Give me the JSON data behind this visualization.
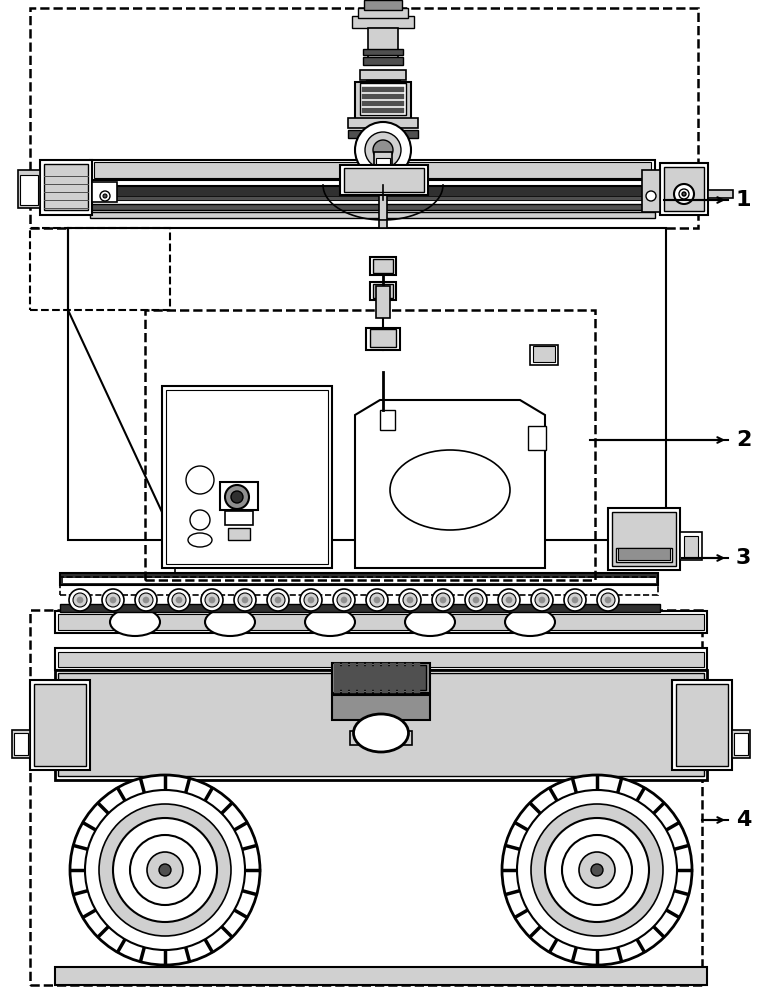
{
  "bg_color": "#ffffff",
  "black": "#000000",
  "gray_light": "#d0d0d0",
  "gray_mid": "#909090",
  "gray_dark": "#505050",
  "gray_vdark": "#303030",
  "dashed_color": "#333333",
  "label_1": "1",
  "label_2": "2",
  "label_3": "3",
  "label_4": "4",
  "label_fontsize": 16
}
